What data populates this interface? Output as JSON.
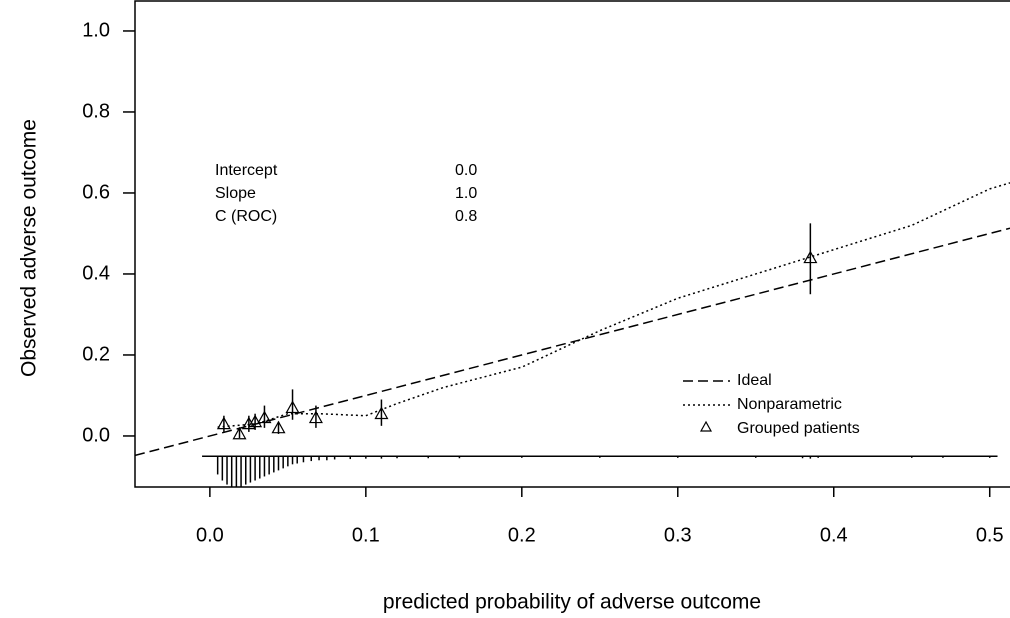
{
  "chart_data": {
    "type": "calibration",
    "xlabel": "predicted probability of adverse outcome",
    "ylabel": "Observed adverse outcome",
    "xlim": [
      -0.048,
      0.513
    ],
    "ylim": [
      -0.126,
      1.074
    ],
    "xticks": [
      {
        "value": 0,
        "label": "0.0"
      },
      0.1,
      0.2,
      0.3,
      0.4,
      0.5
    ],
    "yticks": [
      {
        "value": 0,
        "label": "0.0"
      },
      0.2,
      0.4,
      0.6,
      0.8,
      {
        "value": 1,
        "label": "1.0"
      }
    ],
    "stats": [
      {
        "label": "Intercept",
        "value": "0.0"
      },
      {
        "label": "Slope",
        "value": "1.0"
      },
      {
        "label": "C (ROC)",
        "value": "0.8"
      }
    ],
    "series": [
      {
        "name": "Ideal",
        "style": "dashed",
        "color": "#000000",
        "x": [
          -0.048,
          0.513
        ],
        "values": [
          -0.048,
          0.513
        ]
      },
      {
        "name": "Nonparametric",
        "style": "dotted",
        "color": "#000000",
        "x": [
          0.005,
          0.03,
          0.05,
          0.07,
          0.1,
          0.12,
          0.15,
          0.2,
          0.25,
          0.3,
          0.35,
          0.4,
          0.45,
          0.5,
          0.513
        ],
        "values": [
          0.022,
          0.03,
          0.055,
          0.055,
          0.05,
          0.08,
          0.12,
          0.17,
          0.26,
          0.34,
          0.4,
          0.46,
          0.52,
          0.61,
          0.625
        ]
      },
      {
        "name": "Grouped patients",
        "style": "triangle",
        "color": "#000000",
        "x": [
          0.009,
          0.019,
          0.025,
          0.029,
          0.035,
          0.044,
          0.053,
          0.068,
          0.11,
          0.385
        ],
        "values": [
          0.03,
          0.005,
          0.03,
          0.035,
          0.045,
          0.02,
          0.07,
          0.045,
          0.055,
          0.44
        ],
        "lower": [
          0.01,
          -0.005,
          0.01,
          0.015,
          0.02,
          0.005,
          0.04,
          0.02,
          0.025,
          0.35
        ],
        "upper": [
          0.05,
          0.02,
          0.05,
          0.055,
          0.075,
          0.035,
          0.115,
          0.075,
          0.09,
          0.525
        ]
      }
    ],
    "rug": {
      "baseline": -0.05,
      "x": [
        0.005,
        0.008,
        0.011,
        0.014,
        0.017,
        0.02,
        0.023,
        0.026,
        0.029,
        0.032,
        0.035,
        0.038,
        0.041,
        0.044,
        0.047,
        0.05,
        0.053,
        0.056,
        0.06,
        0.065,
        0.07,
        0.075,
        0.08,
        0.09,
        0.1,
        0.11,
        0.12,
        0.14,
        0.16,
        0.2,
        0.25,
        0.3,
        0.35,
        0.38,
        0.385,
        0.39,
        0.45,
        0.47,
        0.5
      ],
      "heights": [
        0.045,
        0.06,
        0.07,
        0.075,
        0.075,
        0.075,
        0.07,
        0.065,
        0.06,
        0.055,
        0.05,
        0.045,
        0.04,
        0.035,
        0.03,
        0.025,
        0.02,
        0.018,
        0.015,
        0.012,
        0.01,
        0.01,
        0.008,
        0.007,
        0.006,
        0.006,
        0.005,
        0.005,
        0.005,
        0.004,
        0.004,
        0.004,
        0.004,
        0.005,
        0.006,
        0.004,
        0.004,
        0.004,
        0.004
      ]
    }
  }
}
